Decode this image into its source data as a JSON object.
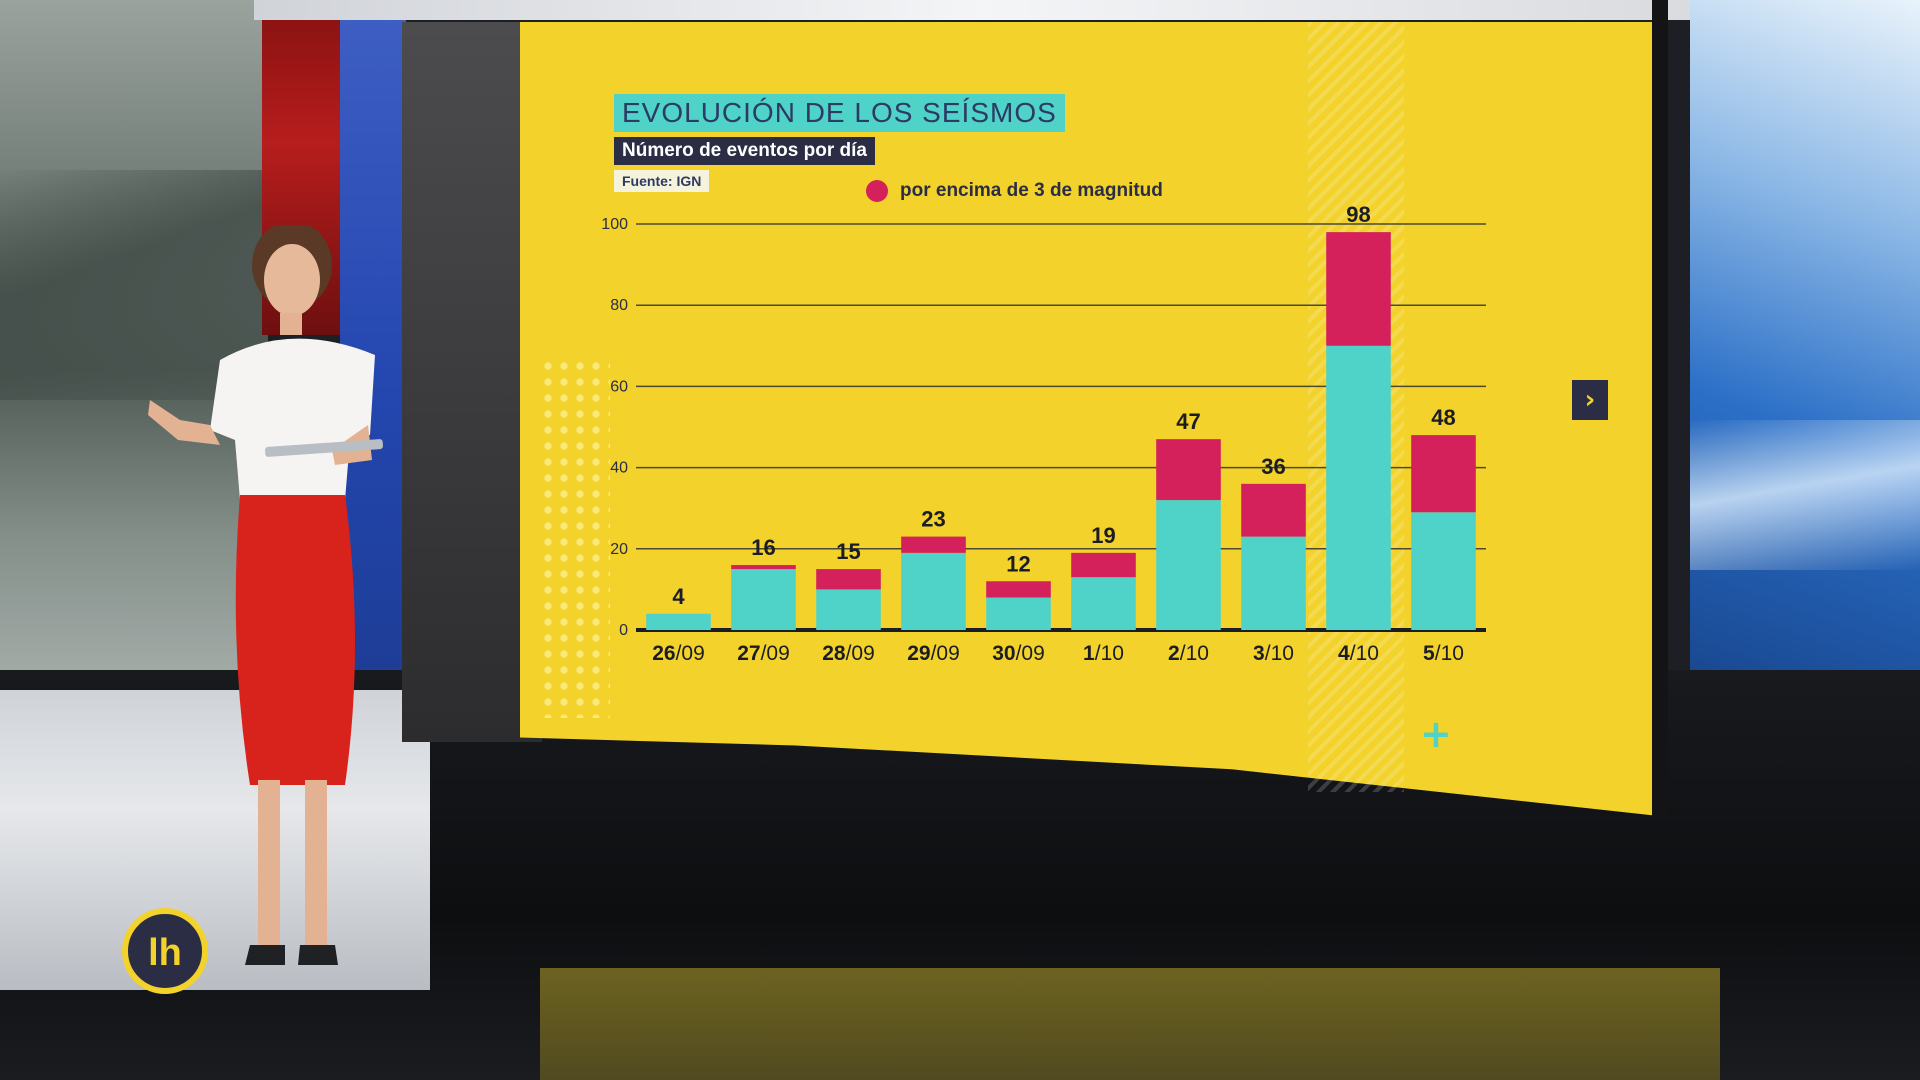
{
  "broadcast": {
    "logo_text": "lh",
    "next_icon": "chevron-right-icon",
    "plus_icon": "plus-icon"
  },
  "colors": {
    "screen_background": "#f2d22b",
    "title_box": "#4fd3c9",
    "subtitle_box": "#2b2d45",
    "magnitude_above_3": "#d5215b",
    "other_events": "#4fd3c9"
  },
  "chart_data": {
    "type": "bar",
    "stacked": true,
    "title": "EVOLUCIÓN DE LOS SEÍSMOS",
    "subtitle": "Número de eventos por día",
    "source": "Fuente: IGN",
    "legend": [
      {
        "label": "por encima de  3 de magnitud",
        "color": "#d5215b"
      }
    ],
    "categories": [
      "26/09",
      "27/09",
      "28/09",
      "29/09",
      "30/09",
      "1/10",
      "2/10",
      "3/10",
      "4/10",
      "5/10"
    ],
    "totals": [
      4,
      16,
      15,
      23,
      12,
      19,
      47,
      36,
      98,
      48
    ],
    "series": [
      {
        "color": "#4fd3c9",
        "values": [
          4,
          15,
          10,
          19,
          8,
          13,
          32,
          23,
          70,
          29
        ]
      },
      {
        "name": "por encima de  3 de magnitud",
        "color": "#d5215b",
        "values": [
          0,
          1,
          5,
          4,
          4,
          6,
          15,
          13,
          28,
          19
        ]
      }
    ],
    "yticks": [
      0,
      20,
      40,
      60,
      80,
      100
    ],
    "ylim": [
      0,
      100
    ],
    "grid": true,
    "legend_position": "top"
  }
}
